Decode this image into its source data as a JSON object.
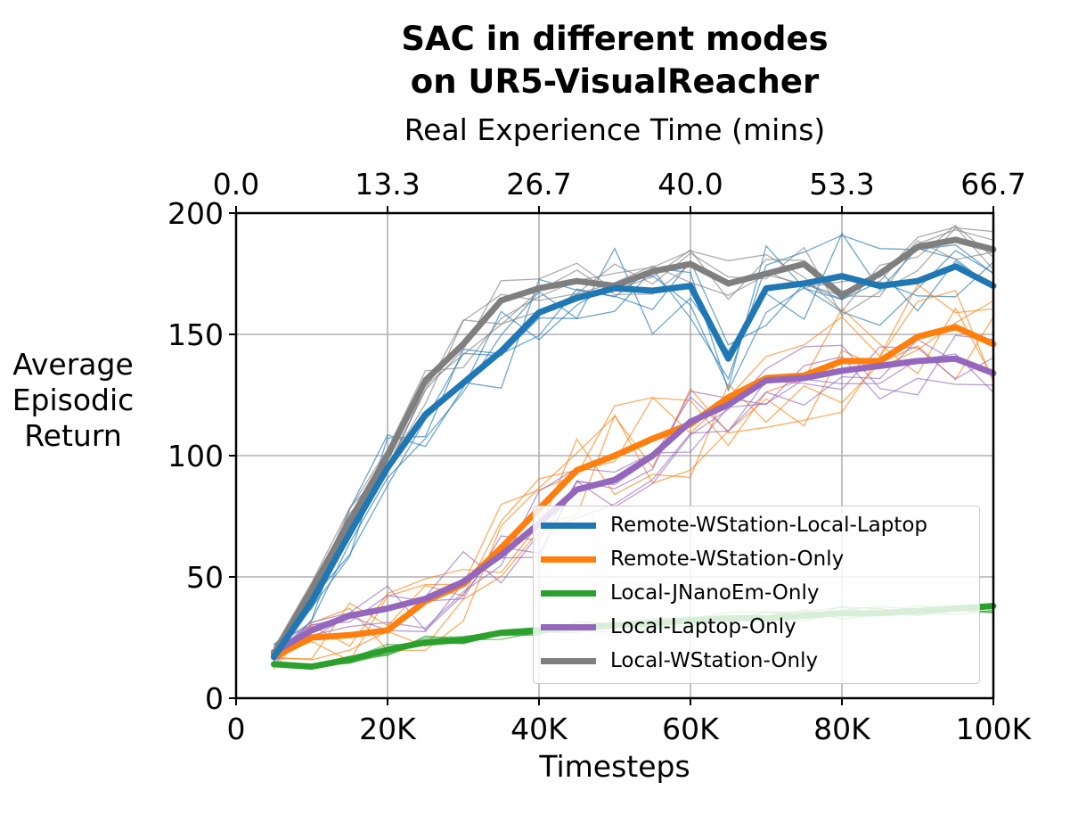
{
  "chart_data": {
    "type": "line",
    "title": [
      "SAC in different modes",
      "on UR5-VisualReacher"
    ],
    "xlabel": "Timesteps",
    "ylabel": [
      "Average",
      "Episodic",
      "Return"
    ],
    "top_xlabel": "Real Experience Time (mins)",
    "xlim": [
      0,
      100000
    ],
    "ylim": [
      0,
      200
    ],
    "x_ticks": [
      0,
      20000,
      40000,
      60000,
      80000,
      100000
    ],
    "x_tick_labels": [
      "0",
      "20K",
      "40K",
      "60K",
      "80K",
      "100K"
    ],
    "y_ticks": [
      0,
      50,
      100,
      150,
      200
    ],
    "y_tick_labels": [
      "0",
      "50",
      "100",
      "150",
      "200"
    ],
    "top_ticks": [
      0,
      20000,
      40000,
      60000,
      80000,
      100000
    ],
    "top_tick_labels": [
      "0.0",
      "13.3",
      "26.7",
      "40.0",
      "53.3",
      "66.7"
    ],
    "grid": true,
    "legend_position": "lower-right",
    "x": [
      5000,
      10000,
      15000,
      20000,
      25000,
      30000,
      35000,
      40000,
      45000,
      50000,
      55000,
      60000,
      65000,
      70000,
      75000,
      80000,
      85000,
      90000,
      95000,
      100000
    ],
    "series": [
      {
        "name": "Remote-WStation-Local-Laptop",
        "color": "#1f77b4",
        "values": [
          17,
          40,
          68,
          95,
          117,
          130,
          143,
          159,
          165,
          169,
          168,
          170,
          140,
          169,
          171,
          174,
          170,
          172,
          178,
          170
        ]
      },
      {
        "name": "Remote-WStation-Only",
        "color": "#ff7f0e",
        "values": [
          17,
          25,
          26,
          28,
          40,
          47,
          62,
          78,
          94,
          100,
          107,
          113,
          124,
          132,
          133,
          139,
          139,
          149,
          153,
          146
        ]
      },
      {
        "name": "Local-JNanoEm-Only",
        "color": "#2ca02c",
        "values": [
          14,
          13,
          16,
          20,
          23,
          24,
          27,
          28,
          29,
          30,
          31,
          32,
          33,
          33,
          34,
          35,
          35,
          36,
          37,
          38
        ]
      },
      {
        "name": "Local-Laptop-Only",
        "color": "#9467bd",
        "values": [
          19,
          28,
          34,
          37,
          41,
          48,
          59,
          72,
          86,
          90,
          100,
          114,
          121,
          131,
          132,
          135,
          137,
          139,
          140,
          134
        ]
      },
      {
        "name": "Local-WStation-Only",
        "color": "#7f7f7f",
        "values": [
          18,
          45,
          73,
          100,
          131,
          146,
          164,
          169,
          172,
          170,
          176,
          179,
          171,
          175,
          179,
          166,
          175,
          186,
          189,
          185
        ]
      }
    ]
  }
}
